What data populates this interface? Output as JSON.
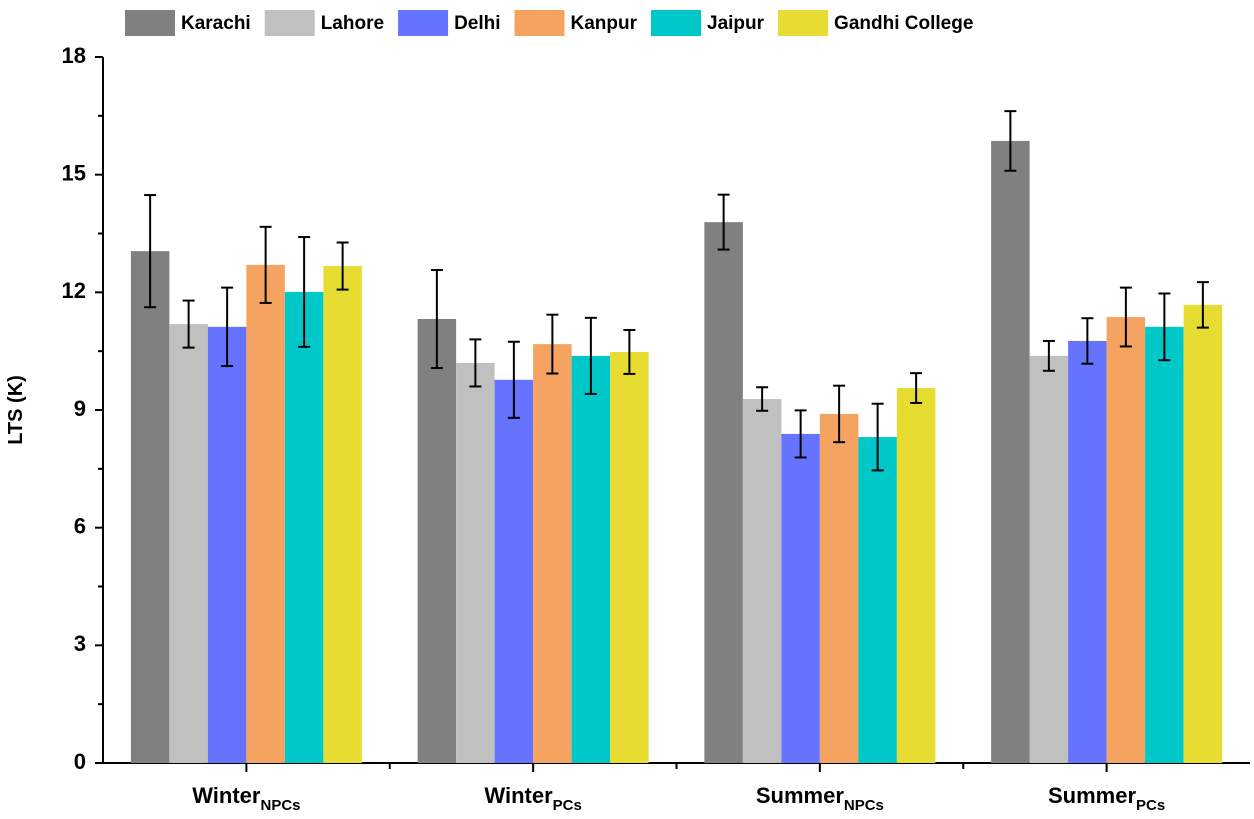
{
  "chart_data": {
    "type": "bar",
    "y_label": "LTS (K)",
    "categories": [
      "Winter",
      "Winter",
      "Summer",
      "Summer"
    ],
    "category_subscripts": [
      "NPCs",
      "PCs",
      "NPCs",
      "PCs"
    ],
    "ylim": [
      0,
      18
    ],
    "yticks": [
      0,
      3,
      6,
      9,
      12,
      15,
      18
    ],
    "series": [
      {
        "name": "Karachi",
        "color": "#808080",
        "values": [
          13.05,
          11.32,
          13.79,
          15.86
        ],
        "errors": [
          1.43,
          1.25,
          0.7,
          0.76
        ]
      },
      {
        "name": "Lahore",
        "color": "#c0c0c0",
        "values": [
          11.19,
          10.2,
          9.28,
          10.38
        ],
        "errors": [
          0.6,
          0.6,
          0.3,
          0.38
        ]
      },
      {
        "name": "Delhi",
        "color": "#6673ff",
        "values": [
          11.12,
          9.77,
          8.39,
          10.76
        ],
        "errors": [
          1.0,
          0.97,
          0.6,
          0.58
        ]
      },
      {
        "name": "Kanpur",
        "color": "#f4a460",
        "values": [
          12.7,
          10.68,
          8.9,
          11.37
        ],
        "errors": [
          0.97,
          0.75,
          0.72,
          0.75
        ]
      },
      {
        "name": "Jaipur",
        "color": "#00c8c8",
        "values": [
          12.01,
          10.38,
          8.31,
          11.12
        ],
        "errors": [
          1.4,
          0.97,
          0.85,
          0.85
        ]
      },
      {
        "name": "Gandhi College",
        "color": "#e6dc32",
        "values": [
          12.67,
          10.48,
          9.56,
          11.68
        ],
        "errors": [
          0.6,
          0.56,
          0.38,
          0.58
        ]
      }
    ]
  }
}
